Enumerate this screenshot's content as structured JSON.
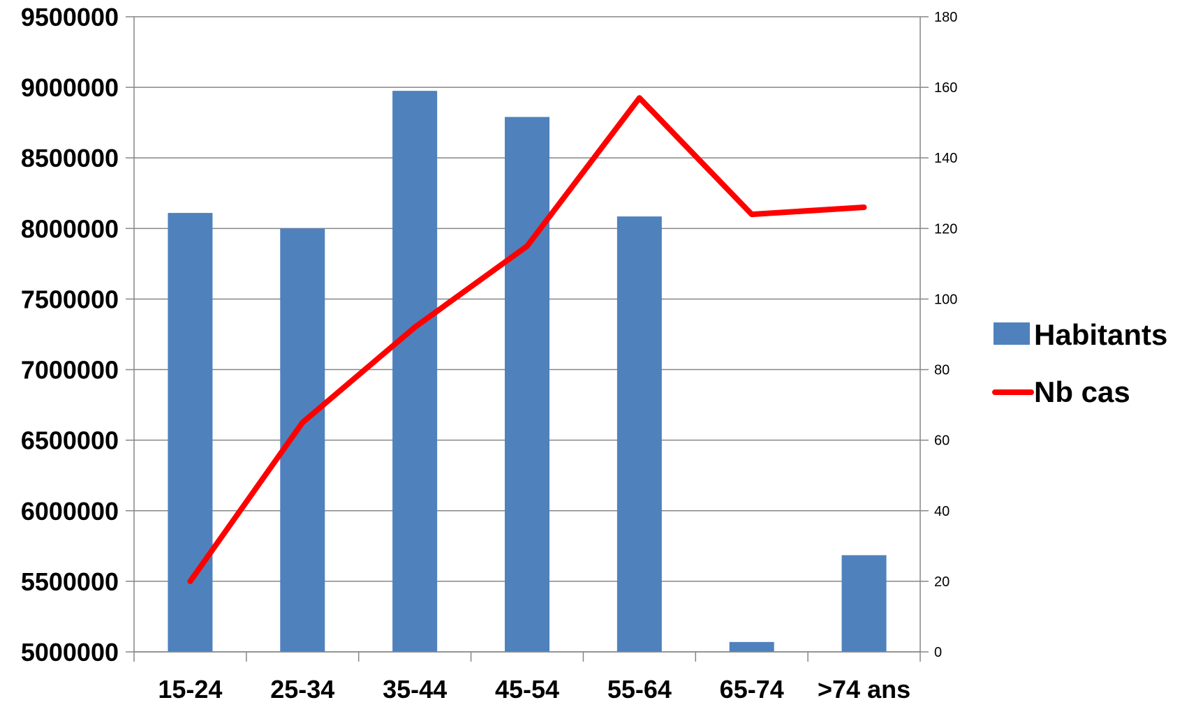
{
  "chart_data": {
    "type": "bar+line",
    "categories": [
      "15-24",
      "25-34",
      "35-44",
      "45-54",
      "55-64",
      "65-74",
      ">74 ans"
    ],
    "series": [
      {
        "name": "Habitants",
        "type": "bar",
        "axis": "left",
        "color": "#4F81BD",
        "values": [
          8110000,
          8000000,
          8975000,
          8790000,
          8085000,
          5070000,
          5685000
        ]
      },
      {
        "name": "Nb cas",
        "type": "line",
        "axis": "right",
        "color": "#FF0000",
        "values": [
          20,
          65,
          92,
          115,
          157,
          124,
          126
        ]
      }
    ],
    "y_left": {
      "min": 5000000,
      "max": 9500000,
      "step": 500000,
      "ticks": [
        "5000000",
        "5500000",
        "6000000",
        "6500000",
        "7000000",
        "7500000",
        "8000000",
        "8500000",
        "9000000",
        "9500000"
      ]
    },
    "y_right": {
      "min": 0,
      "max": 180,
      "step": 20,
      "ticks": [
        "0",
        "20",
        "40",
        "60",
        "80",
        "100",
        "120",
        "140",
        "160",
        "180"
      ]
    },
    "gridlines": true,
    "legend_position": "right",
    "title": "",
    "xlabel": "",
    "ylabel": ""
  }
}
